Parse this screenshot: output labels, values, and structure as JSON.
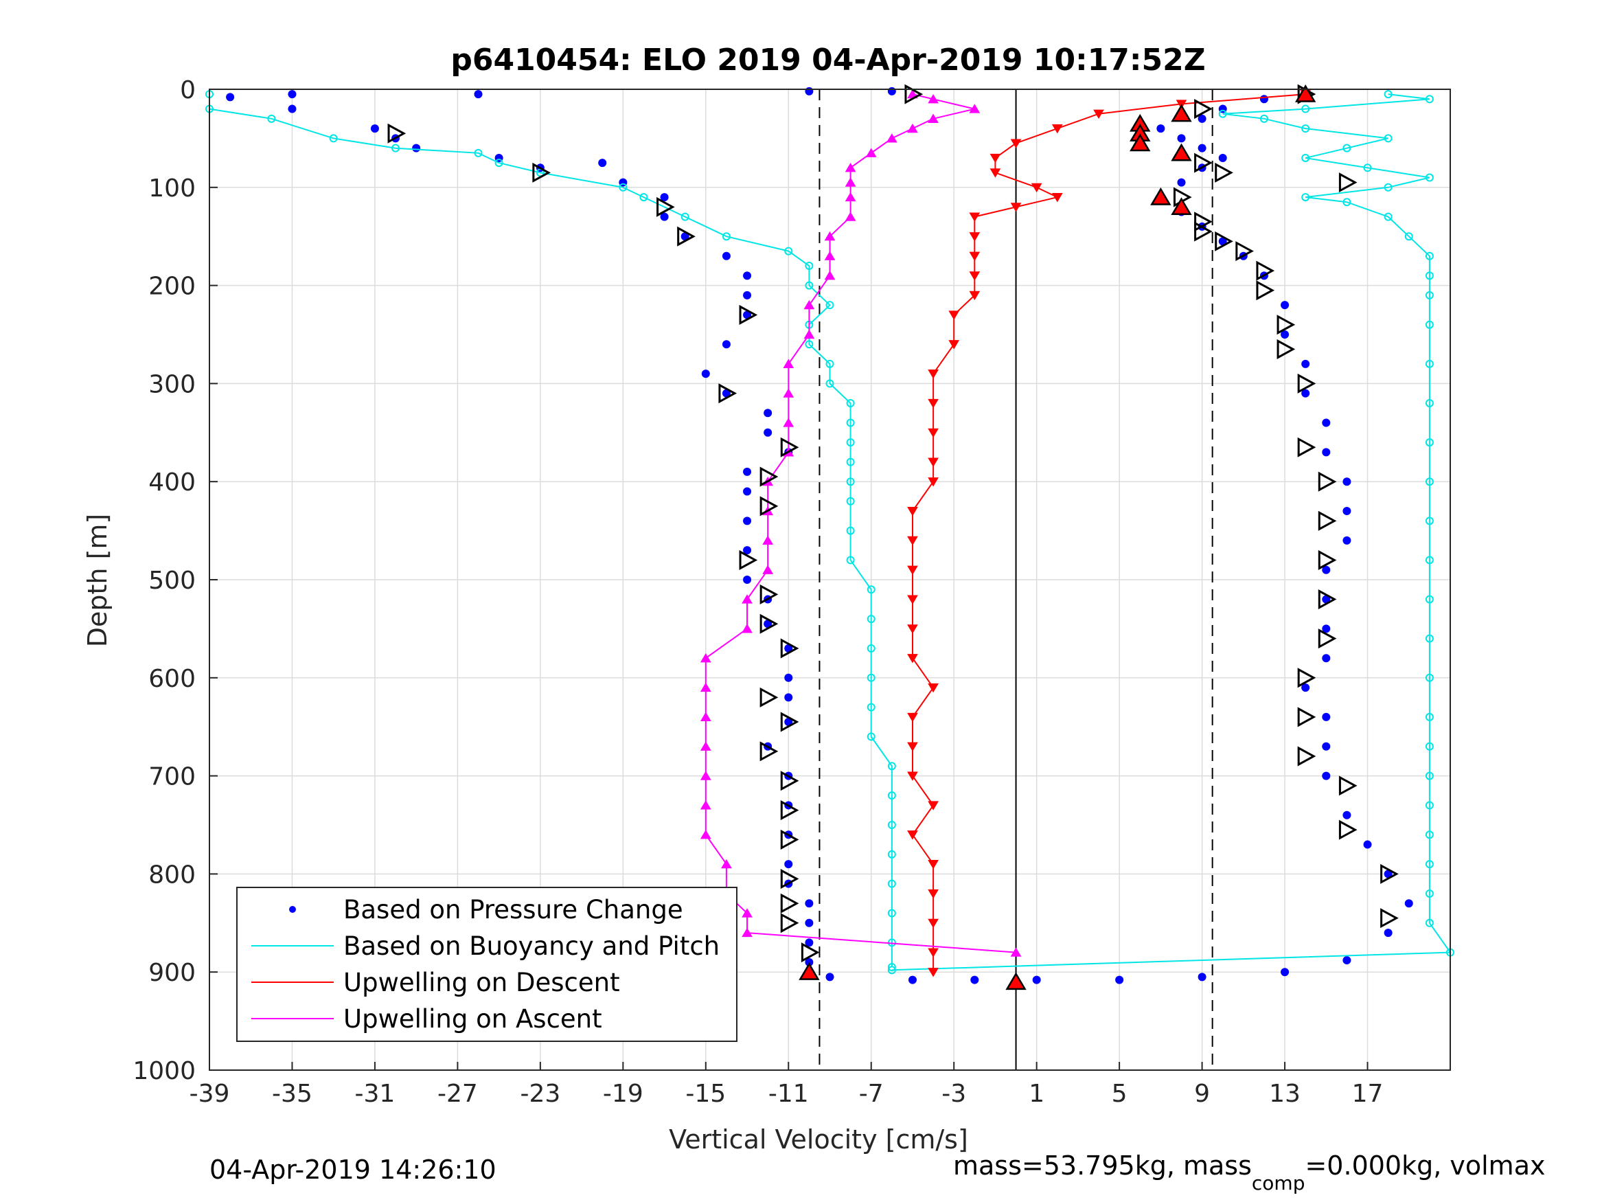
{
  "chart_data": {
    "type": "scatter",
    "title": "p6410454: ELO 2019 04-Apr-2019 10:17:52Z",
    "xlabel": "Vertical Velocity [cm/s]",
    "ylabel": "Depth [m]",
    "xlim": [
      -39,
      21
    ],
    "ylim": [
      1000,
      0
    ],
    "y_reversed": true,
    "grid": true,
    "xticks": [
      -39,
      -35,
      -31,
      -27,
      -23,
      -19,
      -15,
      -11,
      -7,
      -3,
      1,
      5,
      9,
      13,
      17
    ],
    "yticks": [
      0,
      100,
      200,
      300,
      400,
      500,
      600,
      700,
      800,
      900,
      1000
    ],
    "legend_placement": "bottom-left",
    "reference_lines": [
      {
        "x": -9.5,
        "style": "dashed"
      },
      {
        "x": 0,
        "style": "solid"
      },
      {
        "x": 9.5,
        "style": "dashed"
      }
    ],
    "series": [
      {
        "name": "Based on Pressure Change",
        "color": "#0000ff",
        "marker": "dot",
        "descent": [
          [
            -38,
            8
          ],
          [
            -35,
            5
          ],
          [
            -35,
            20
          ],
          [
            -31,
            40
          ],
          [
            -30,
            50
          ],
          [
            -29,
            60
          ],
          [
            -26,
            5
          ],
          [
            -25,
            70
          ],
          [
            -23,
            80
          ],
          [
            -20,
            75
          ],
          [
            -19,
            95
          ],
          [
            -17,
            110
          ],
          [
            -17,
            130
          ],
          [
            -16,
            150
          ],
          [
            -14,
            170
          ],
          [
            -13,
            190
          ],
          [
            -13,
            210
          ],
          [
            -13,
            230
          ],
          [
            -14,
            260
          ],
          [
            -15,
            290
          ],
          [
            -14,
            310
          ],
          [
            -12,
            330
          ],
          [
            -12,
            350
          ],
          [
            -11,
            370
          ],
          [
            -13,
            390
          ],
          [
            -13,
            410
          ],
          [
            -13,
            440
          ],
          [
            -13,
            470
          ],
          [
            -13,
            500
          ],
          [
            -12,
            520
          ],
          [
            -12,
            545
          ],
          [
            -11,
            570
          ],
          [
            -11,
            600
          ],
          [
            -11,
            620
          ],
          [
            -11,
            645
          ],
          [
            -12,
            670
          ],
          [
            -11,
            700
          ],
          [
            -11,
            730
          ],
          [
            -11,
            760
          ],
          [
            -11,
            790
          ],
          [
            -11,
            810
          ],
          [
            -10,
            830
          ],
          [
            -10,
            850
          ],
          [
            -10,
            870
          ],
          [
            -10,
            890
          ],
          [
            -9,
            905
          ],
          [
            -5,
            908
          ],
          [
            -2,
            908
          ],
          [
            0,
            910
          ]
        ],
        "ascent": [
          [
            1,
            908
          ],
          [
            5,
            908
          ],
          [
            9,
            905
          ],
          [
            13,
            900
          ],
          [
            16,
            888
          ],
          [
            18,
            860
          ],
          [
            19,
            830
          ],
          [
            18,
            800
          ],
          [
            17,
            770
          ],
          [
            16,
            740
          ],
          [
            15,
            700
          ],
          [
            15,
            670
          ],
          [
            15,
            640
          ],
          [
            14,
            610
          ],
          [
            15,
            580
          ],
          [
            15,
            550
          ],
          [
            15,
            520
          ],
          [
            15,
            490
          ],
          [
            16,
            460
          ],
          [
            16,
            430
          ],
          [
            16,
            400
          ],
          [
            15,
            370
          ],
          [
            15,
            340
          ],
          [
            14,
            310
          ],
          [
            14,
            280
          ],
          [
            13,
            250
          ],
          [
            13,
            220
          ],
          [
            12,
            190
          ],
          [
            11,
            170
          ],
          [
            10,
            155
          ],
          [
            9,
            140
          ],
          [
            8,
            125
          ],
          [
            7,
            110
          ],
          [
            8,
            95
          ],
          [
            9,
            80
          ],
          [
            10,
            70
          ],
          [
            9,
            60
          ],
          [
            8,
            50
          ],
          [
            7,
            40
          ],
          [
            9,
            30
          ],
          [
            10,
            20
          ],
          [
            12,
            10
          ],
          [
            14,
            5
          ],
          [
            -6,
            2
          ],
          [
            -10,
            2
          ]
        ]
      },
      {
        "name": "Based on Buoyancy and Pitch",
        "color": "#00e5e5",
        "marker": "line-o",
        "descent": [
          [
            -39,
            5
          ],
          [
            -39,
            20
          ],
          [
            -36,
            30
          ],
          [
            -33,
            50
          ],
          [
            -30,
            60
          ],
          [
            -26,
            65
          ],
          [
            -25,
            75
          ],
          [
            -23,
            85
          ],
          [
            -19,
            100
          ],
          [
            -18,
            110
          ],
          [
            -16,
            130
          ],
          [
            -14,
            150
          ],
          [
            -11,
            165
          ],
          [
            -10,
            180
          ],
          [
            -10,
            200
          ],
          [
            -9,
            220
          ],
          [
            -10,
            240
          ],
          [
            -10,
            260
          ],
          [
            -9,
            280
          ],
          [
            -9,
            300
          ],
          [
            -8,
            320
          ],
          [
            -8,
            340
          ],
          [
            -8,
            360
          ],
          [
            -8,
            380
          ],
          [
            -8,
            400
          ],
          [
            -8,
            420
          ],
          [
            -8,
            450
          ],
          [
            -8,
            480
          ],
          [
            -7,
            510
          ],
          [
            -7,
            540
          ],
          [
            -7,
            570
          ],
          [
            -7,
            600
          ],
          [
            -7,
            630
          ],
          [
            -7,
            660
          ],
          [
            -6,
            690
          ],
          [
            -6,
            720
          ],
          [
            -6,
            750
          ],
          [
            -6,
            780
          ],
          [
            -6,
            810
          ],
          [
            -6,
            840
          ],
          [
            -6,
            870
          ],
          [
            -6,
            895
          ]
        ],
        "ascent": [
          [
            -6,
            898
          ],
          [
            21,
            880
          ],
          [
            20,
            850
          ],
          [
            20,
            820
          ],
          [
            20,
            790
          ],
          [
            20,
            760
          ],
          [
            20,
            730
          ],
          [
            20,
            700
          ],
          [
            20,
            670
          ],
          [
            20,
            640
          ],
          [
            20,
            600
          ],
          [
            20,
            560
          ],
          [
            20,
            520
          ],
          [
            20,
            480
          ],
          [
            20,
            440
          ],
          [
            20,
            400
          ],
          [
            20,
            360
          ],
          [
            20,
            320
          ],
          [
            20,
            280
          ],
          [
            20,
            240
          ],
          [
            20,
            210
          ],
          [
            20,
            190
          ],
          [
            20,
            170
          ],
          [
            19,
            150
          ],
          [
            18,
            130
          ],
          [
            16,
            115
          ],
          [
            14,
            110
          ],
          [
            18,
            100
          ],
          [
            20,
            90
          ],
          [
            17,
            80
          ],
          [
            14,
            70
          ],
          [
            16,
            60
          ],
          [
            18,
            50
          ],
          [
            14,
            40
          ],
          [
            12,
            30
          ],
          [
            10,
            25
          ],
          [
            14,
            20
          ],
          [
            20,
            10
          ],
          [
            18,
            5
          ]
        ]
      },
      {
        "name": "Upwelling on Descent",
        "color": "#ff0000",
        "marker": "triangle-down",
        "values": [
          [
            14,
            5
          ],
          [
            8,
            15
          ],
          [
            4,
            25
          ],
          [
            2,
            40
          ],
          [
            0,
            55
          ],
          [
            -1,
            70
          ],
          [
            -1,
            85
          ],
          [
            1,
            100
          ],
          [
            2,
            110
          ],
          [
            0,
            120
          ],
          [
            -2,
            130
          ],
          [
            -2,
            150
          ],
          [
            -2,
            170
          ],
          [
            -2,
            190
          ],
          [
            -2,
            210
          ],
          [
            -3,
            230
          ],
          [
            -3,
            260
          ],
          [
            -4,
            290
          ],
          [
            -4,
            320
          ],
          [
            -4,
            350
          ],
          [
            -4,
            380
          ],
          [
            -4,
            400
          ],
          [
            -5,
            430
          ],
          [
            -5,
            460
          ],
          [
            -5,
            490
          ],
          [
            -5,
            520
          ],
          [
            -5,
            550
          ],
          [
            -5,
            580
          ],
          [
            -4,
            610
          ],
          [
            -5,
            640
          ],
          [
            -5,
            670
          ],
          [
            -5,
            700
          ],
          [
            -4,
            730
          ],
          [
            -5,
            760
          ],
          [
            -4,
            790
          ],
          [
            -4,
            820
          ],
          [
            -4,
            850
          ],
          [
            -4,
            880
          ],
          [
            -4,
            900
          ]
        ]
      },
      {
        "name": "Upwelling on Ascent",
        "color": "#ff00ff",
        "marker": "triangle-up",
        "values": [
          [
            0,
            880
          ],
          [
            -13,
            860
          ],
          [
            -13,
            840
          ],
          [
            -14,
            820
          ],
          [
            -14,
            790
          ],
          [
            -15,
            760
          ],
          [
            -15,
            730
          ],
          [
            -15,
            700
          ],
          [
            -15,
            670
          ],
          [
            -15,
            640
          ],
          [
            -15,
            610
          ],
          [
            -15,
            580
          ],
          [
            -13,
            550
          ],
          [
            -13,
            520
          ],
          [
            -12,
            490
          ],
          [
            -12,
            460
          ],
          [
            -12,
            430
          ],
          [
            -12,
            400
          ],
          [
            -11,
            370
          ],
          [
            -11,
            340
          ],
          [
            -11,
            310
          ],
          [
            -11,
            280
          ],
          [
            -10,
            250
          ],
          [
            -10,
            220
          ],
          [
            -9,
            190
          ],
          [
            -9,
            170
          ],
          [
            -9,
            150
          ],
          [
            -8,
            130
          ],
          [
            -8,
            110
          ],
          [
            -8,
            95
          ],
          [
            -8,
            80
          ],
          [
            -7,
            65
          ],
          [
            -6,
            50
          ],
          [
            -5,
            40
          ],
          [
            -4,
            30
          ],
          [
            -2,
            20
          ],
          [
            -4,
            10
          ],
          [
            -5,
            5
          ]
        ]
      }
    ],
    "markers_triangle_open": [
      [
        -30,
        45
      ],
      [
        -23,
        85
      ],
      [
        -17,
        120
      ],
      [
        -16,
        150
      ],
      [
        -13,
        230
      ],
      [
        -14,
        310
      ],
      [
        -11,
        365
      ],
      [
        -12,
        395
      ],
      [
        -12,
        425
      ],
      [
        -13,
        480
      ],
      [
        -12,
        515
      ],
      [
        -12,
        545
      ],
      [
        -11,
        570
      ],
      [
        -12,
        620
      ],
      [
        -11,
        645
      ],
      [
        -12,
        675
      ],
      [
        -11,
        705
      ],
      [
        -11,
        735
      ],
      [
        -11,
        765
      ],
      [
        -11,
        805
      ],
      [
        -11,
        830
      ],
      [
        -11,
        850
      ],
      [
        -10,
        880
      ],
      [
        -5,
        5
      ],
      [
        14,
        5
      ],
      [
        9,
        20
      ],
      [
        9,
        75
      ],
      [
        10,
        85
      ],
      [
        16,
        95
      ],
      [
        8,
        110
      ],
      [
        9,
        135
      ],
      [
        9,
        145
      ],
      [
        10,
        155
      ],
      [
        11,
        165
      ],
      [
        12,
        185
      ],
      [
        12,
        205
      ],
      [
        13,
        240
      ],
      [
        13,
        265
      ],
      [
        14,
        300
      ],
      [
        14,
        365
      ],
      [
        15,
        400
      ],
      [
        15,
        440
      ],
      [
        15,
        480
      ],
      [
        15,
        520
      ],
      [
        15,
        560
      ],
      [
        14,
        600
      ],
      [
        14,
        640
      ],
      [
        14,
        680
      ],
      [
        16,
        710
      ],
      [
        16,
        755
      ],
      [
        18,
        800
      ],
      [
        18,
        845
      ]
    ],
    "markers_triangle_red": [
      [
        14,
        5
      ],
      [
        8,
        25
      ],
      [
        6,
        35
      ],
      [
        6,
        45
      ],
      [
        6,
        55
      ],
      [
        8,
        65
      ],
      [
        7,
        110
      ],
      [
        8,
        120
      ],
      [
        -10,
        900
      ],
      [
        0,
        910
      ]
    ],
    "footer_left": "04-Apr-2019 14:26:10",
    "footer_right_prefix": "mass=53.795kg, mass",
    "footer_right_sub": "comp",
    "footer_right_suffix": "=0.000kg, volmax"
  }
}
